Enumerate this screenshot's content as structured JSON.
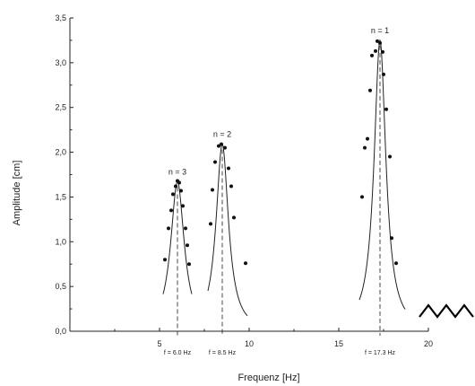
{
  "chart_data": {
    "type": "scatter",
    "title": "",
    "xlabel": "Frequenz [Hz]",
    "ylabel": "Amplitude [cm]",
    "xlim": [
      0,
      20
    ],
    "ylim": [
      0,
      3.5
    ],
    "xticks": [
      5,
      10,
      15,
      20
    ],
    "xtick_labels": [
      "5",
      "10",
      "15",
      "20"
    ],
    "yticks": [
      0,
      0.5,
      1.0,
      1.5,
      2.0,
      2.5,
      3.0,
      3.5
    ],
    "ytick_labels": [
      "0,0",
      "0,5",
      "1,0",
      "1,5",
      "2,0",
      "2,5",
      "3,0",
      "3,5"
    ],
    "grid": false,
    "series": [
      {
        "label": "n = 3",
        "resonance_label": "f = 6.0 Hz",
        "f0": 6.0,
        "peak": 1.67,
        "gamma": 0.46,
        "fit_range": [
          5.2,
          6.8
        ],
        "points": [
          [
            5.3,
            0.8
          ],
          [
            5.5,
            1.15
          ],
          [
            5.65,
            1.35
          ],
          [
            5.75,
            1.53
          ],
          [
            5.9,
            1.62
          ],
          [
            6.0,
            1.68
          ],
          [
            6.1,
            1.66
          ],
          [
            6.2,
            1.57
          ],
          [
            6.3,
            1.4
          ],
          [
            6.45,
            1.15
          ],
          [
            6.55,
            0.96
          ],
          [
            6.65,
            0.75
          ]
        ]
      },
      {
        "label": "n = 2",
        "resonance_label": "f = 8.5 Hz",
        "f0": 8.5,
        "peak": 2.09,
        "gamma": 0.42,
        "fit_range": [
          7.7,
          9.9
        ],
        "points": [
          [
            7.85,
            1.2
          ],
          [
            7.95,
            1.58
          ],
          [
            8.1,
            1.89
          ],
          [
            8.3,
            2.07
          ],
          [
            8.45,
            2.09
          ],
          [
            8.65,
            2.05
          ],
          [
            8.85,
            1.82
          ],
          [
            9.0,
            1.62
          ],
          [
            9.15,
            1.27
          ],
          [
            9.8,
            0.76
          ]
        ]
      },
      {
        "label": "n = 1",
        "resonance_label": "f = 17.3 Hz",
        "f0": 17.3,
        "peak": 3.25,
        "gamma": 0.4,
        "fit_range": [
          16.15,
          18.7
        ],
        "points": [
          [
            16.3,
            1.5
          ],
          [
            16.45,
            2.05
          ],
          [
            16.6,
            2.15
          ],
          [
            16.75,
            2.69
          ],
          [
            16.85,
            3.08
          ],
          [
            17.05,
            3.13
          ],
          [
            17.15,
            3.24
          ],
          [
            17.3,
            3.22
          ],
          [
            17.45,
            3.12
          ],
          [
            17.5,
            2.87
          ],
          [
            17.65,
            2.48
          ],
          [
            17.85,
            1.95
          ],
          [
            17.95,
            1.04
          ],
          [
            18.2,
            0.76
          ]
        ]
      }
    ],
    "annotations": [
      {
        "text": "n = 3",
        "x": 6.0,
        "y": 1.67
      },
      {
        "text": "n = 2",
        "x": 8.5,
        "y": 2.09
      },
      {
        "text": "n = 1",
        "x": 17.3,
        "y": 3.25
      }
    ]
  }
}
